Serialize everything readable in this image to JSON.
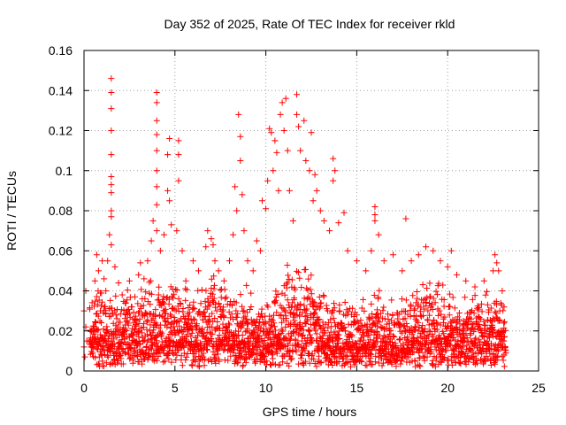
{
  "chart_data": {
    "type": "scatter",
    "title": "Day 352 of 2025, Rate Of TEC Index for receiver rkld",
    "xlabel": "GPS time / hours",
    "ylabel": "ROTI / TECUs",
    "xlim": [
      0,
      25
    ],
    "ylim": [
      0,
      0.16
    ],
    "xticks": [
      0,
      5,
      10,
      15,
      20,
      25
    ],
    "xtick_labels": [
      "0",
      "5",
      "10",
      "15",
      "20",
      "25"
    ],
    "yticks": [
      0,
      0.02,
      0.04,
      0.06,
      0.08,
      0.1,
      0.12,
      0.14,
      0.16
    ],
    "ytick_labels": [
      "0",
      "0.02",
      "0.04",
      "0.06",
      "0.08",
      "0.1",
      "0.12",
      "0.14",
      "0.16"
    ],
    "grid": true,
    "marker": "plus",
    "colors": {
      "series": "#ff0000",
      "grid": "#a0a0a0",
      "axes": "#000000"
    },
    "series": [
      {
        "points": [
          [
            0.0,
            0.03
          ],
          [
            0.0,
            0.012
          ],
          [
            0.05,
            0.007
          ],
          [
            0.1,
            0.04
          ],
          [
            0.1,
            0.022
          ],
          [
            0.15,
            0.015
          ],
          [
            0.5,
            0.02
          ],
          [
            0.6,
            0.045
          ],
          [
            0.7,
            0.058
          ],
          [
            0.8,
            0.05
          ],
          [
            0.9,
            0.03
          ],
          [
            1.0,
            0.055
          ],
          [
            1.1,
            0.046
          ],
          [
            1.2,
            0.04
          ],
          [
            1.3,
            0.055
          ],
          [
            1.4,
            0.068
          ],
          [
            1.5,
            0.146
          ],
          [
            1.5,
            0.139
          ],
          [
            1.5,
            0.131
          ],
          [
            1.5,
            0.12
          ],
          [
            1.5,
            0.108
          ],
          [
            1.5,
            0.097
          ],
          [
            1.5,
            0.093
          ],
          [
            1.5,
            0.089
          ],
          [
            1.5,
            0.08
          ],
          [
            1.5,
            0.077
          ],
          [
            1.5,
            0.063
          ],
          [
            1.7,
            0.052
          ],
          [
            1.9,
            0.044
          ],
          [
            2.1,
            0.038
          ],
          [
            2.3,
            0.034
          ],
          [
            2.5,
            0.045
          ],
          [
            2.8,
            0.037
          ],
          [
            3.0,
            0.048
          ],
          [
            3.1,
            0.054
          ],
          [
            3.3,
            0.046
          ],
          [
            3.5,
            0.055
          ],
          [
            3.7,
            0.065
          ],
          [
            3.8,
            0.075
          ],
          [
            4.0,
            0.139
          ],
          [
            4.0,
            0.134
          ],
          [
            4.0,
            0.125
          ],
          [
            4.0,
            0.118
          ],
          [
            4.0,
            0.11
          ],
          [
            4.0,
            0.1
          ],
          [
            4.0,
            0.092
          ],
          [
            4.0,
            0.083
          ],
          [
            4.0,
            0.07
          ],
          [
            4.2,
            0.06
          ],
          [
            4.4,
            0.068
          ],
          [
            4.6,
            0.09
          ],
          [
            4.6,
            0.108
          ],
          [
            4.7,
            0.116
          ],
          [
            4.7,
            0.085
          ],
          [
            4.8,
            0.073
          ],
          [
            5.1,
            0.07
          ],
          [
            5.2,
            0.115
          ],
          [
            5.2,
            0.108
          ],
          [
            5.2,
            0.095
          ],
          [
            5.4,
            0.06
          ],
          [
            5.6,
            0.045
          ],
          [
            6.0,
            0.055
          ],
          [
            6.3,
            0.05
          ],
          [
            6.7,
            0.062
          ],
          [
            6.8,
            0.07
          ],
          [
            7.0,
            0.066
          ],
          [
            7.1,
            0.063
          ],
          [
            7.2,
            0.055
          ],
          [
            7.4,
            0.05
          ],
          [
            7.7,
            0.045
          ],
          [
            8.0,
            0.055
          ],
          [
            8.2,
            0.068
          ],
          [
            8.3,
            0.092
          ],
          [
            8.4,
            0.08
          ],
          [
            8.5,
            0.128
          ],
          [
            8.6,
            0.117
          ],
          [
            8.6,
            0.105
          ],
          [
            8.7,
            0.088
          ],
          [
            8.8,
            0.07
          ],
          [
            9.0,
            0.055
          ],
          [
            9.3,
            0.05
          ],
          [
            9.5,
            0.065
          ],
          [
            9.7,
            0.06
          ],
          [
            9.8,
            0.085
          ],
          [
            10.0,
            0.081
          ],
          [
            10.1,
            0.095
          ],
          [
            10.2,
            0.121
          ],
          [
            10.3,
            0.119
          ],
          [
            10.4,
            0.1
          ],
          [
            10.5,
            0.115
          ],
          [
            10.6,
            0.109
          ],
          [
            10.7,
            0.09
          ],
          [
            10.8,
            0.128
          ],
          [
            10.9,
            0.134
          ],
          [
            11.0,
            0.12
          ],
          [
            11.1,
            0.136
          ],
          [
            11.2,
            0.11
          ],
          [
            11.3,
            0.09
          ],
          [
            11.5,
            0.075
          ],
          [
            11.7,
            0.138
          ],
          [
            11.7,
            0.128
          ],
          [
            11.8,
            0.122
          ],
          [
            11.9,
            0.11
          ],
          [
            12.1,
            0.125
          ],
          [
            12.2,
            0.105
          ],
          [
            12.4,
            0.1
          ],
          [
            12.5,
            0.119
          ],
          [
            12.6,
            0.085
          ],
          [
            12.7,
            0.098
          ],
          [
            12.8,
            0.09
          ],
          [
            13.0,
            0.08
          ],
          [
            13.2,
            0.075
          ],
          [
            13.5,
            0.07
          ],
          [
            13.7,
            0.106
          ],
          [
            13.7,
            0.095
          ],
          [
            13.8,
            0.1
          ],
          [
            14.0,
            0.074
          ],
          [
            14.3,
            0.079
          ],
          [
            14.5,
            0.06
          ],
          [
            15.0,
            0.055
          ],
          [
            15.5,
            0.05
          ],
          [
            15.8,
            0.06
          ],
          [
            16.0,
            0.082
          ],
          [
            16.0,
            0.078
          ],
          [
            16.0,
            0.075
          ],
          [
            16.2,
            0.068
          ],
          [
            16.5,
            0.055
          ],
          [
            17.0,
            0.058
          ],
          [
            17.5,
            0.05
          ],
          [
            17.7,
            0.076
          ],
          [
            18.0,
            0.055
          ],
          [
            18.4,
            0.058
          ],
          [
            18.8,
            0.062
          ],
          [
            19.2,
            0.06
          ],
          [
            19.6,
            0.055
          ],
          [
            20.0,
            0.052
          ],
          [
            20.2,
            0.06
          ],
          [
            20.5,
            0.048
          ],
          [
            21.0,
            0.045
          ],
          [
            21.5,
            0.042
          ],
          [
            22.0,
            0.045
          ],
          [
            22.5,
            0.05
          ],
          [
            22.6,
            0.058
          ],
          [
            22.7,
            0.054
          ],
          [
            22.8,
            0.05
          ],
          [
            23.0,
            0.04
          ],
          [
            23.1,
            0.032
          ],
          [
            23.1,
            0.015
          ],
          [
            23.1,
            0.008
          ]
        ]
      }
    ],
    "dense_band": {
      "x_range": [
        0.3,
        23.2
      ],
      "y_floor_range": [
        0.002,
        0.012
      ],
      "y_ceiling_by_hour": [
        [
          0,
          0.03
        ],
        [
          1,
          0.038
        ],
        [
          2,
          0.033
        ],
        [
          3,
          0.035
        ],
        [
          4,
          0.04
        ],
        [
          5,
          0.036
        ],
        [
          6,
          0.032
        ],
        [
          7,
          0.042
        ],
        [
          8,
          0.035
        ],
        [
          9,
          0.035
        ],
        [
          10,
          0.03
        ],
        [
          11,
          0.044
        ],
        [
          12,
          0.046
        ],
        [
          13,
          0.035
        ],
        [
          14,
          0.03
        ],
        [
          15,
          0.028
        ],
        [
          16,
          0.035
        ],
        [
          17,
          0.03
        ],
        [
          18,
          0.036
        ],
        [
          19,
          0.038
        ],
        [
          20,
          0.034
        ],
        [
          21,
          0.032
        ],
        [
          22,
          0.034
        ],
        [
          23,
          0.032
        ]
      ]
    }
  }
}
